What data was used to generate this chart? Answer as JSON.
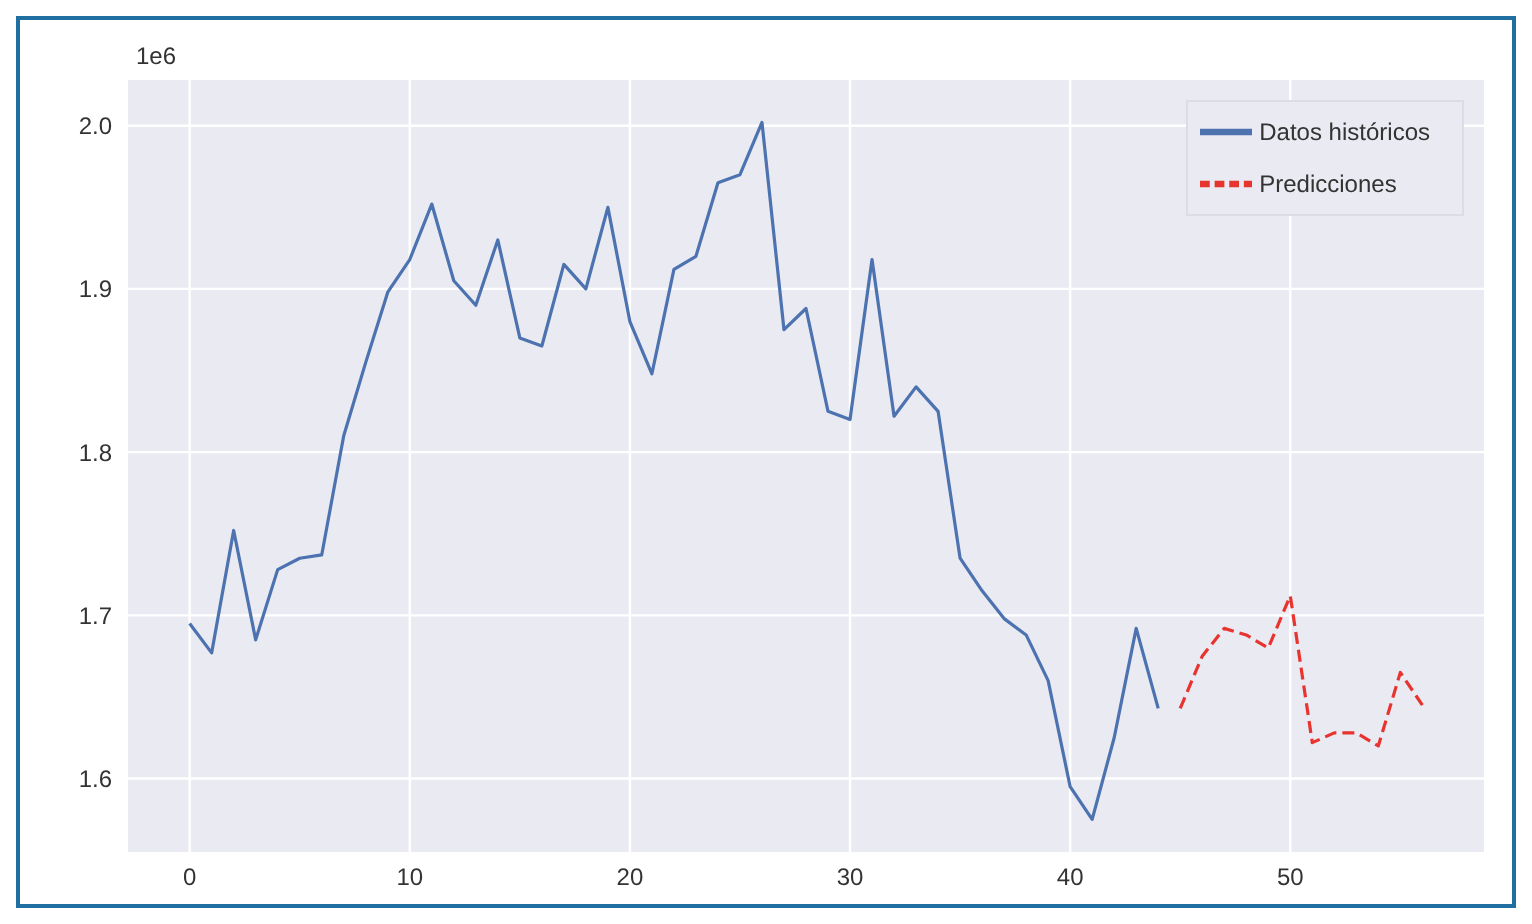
{
  "chart_data": {
    "type": "line",
    "annotations": [
      "1e6"
    ],
    "legend": "top right",
    "grid": true,
    "xlim": [
      -2.8,
      58.8
    ],
    "xticks": [
      0,
      10,
      20,
      30,
      40,
      50
    ],
    "ylim": [
      1.555,
      2.028
    ],
    "yticks": [
      1.6,
      1.7,
      1.8,
      1.9,
      {
        "value": 2,
        "label": "2.0"
      }
    ],
    "series": [
      {
        "name": "Datos históricos",
        "color": "#4c72b0",
        "line_style": "solid",
        "x": [
          0,
          1,
          2,
          3,
          4,
          5,
          6,
          7,
          8,
          9,
          10,
          11,
          12,
          13,
          14,
          15,
          16,
          17,
          18,
          19,
          20,
          21,
          22,
          23,
          24,
          25,
          26,
          27,
          28,
          29,
          30,
          31,
          32,
          33,
          34,
          35,
          36,
          37,
          38,
          39,
          40,
          41,
          42,
          43,
          44
        ],
        "values": [
          1.695,
          1.677,
          1.752,
          1.685,
          1.728,
          1.735,
          1.737,
          1.81,
          1.855,
          1.898,
          1.918,
          1.952,
          1.905,
          1.89,
          1.93,
          1.87,
          1.865,
          1.915,
          1.9,
          1.95,
          1.88,
          1.848,
          1.912,
          1.92,
          1.965,
          1.97,
          2.002,
          1.875,
          1.888,
          1.825,
          1.82,
          1.918,
          1.822,
          1.84,
          1.825,
          1.735,
          1.715,
          1.698,
          1.688,
          1.66,
          1.595,
          1.575,
          1.625,
          1.692,
          1.643
        ]
      },
      {
        "name": "Predicciones",
        "color": "#e8342f",
        "line_style": "dashed",
        "x": [
          45,
          46,
          47,
          48,
          49,
          50,
          51,
          52,
          53,
          54,
          55,
          56
        ],
        "values": [
          1.643,
          1.675,
          1.692,
          1.688,
          1.68,
          1.712,
          1.622,
          1.628,
          1.628,
          1.62,
          1.665,
          1.645
        ]
      }
    ]
  }
}
